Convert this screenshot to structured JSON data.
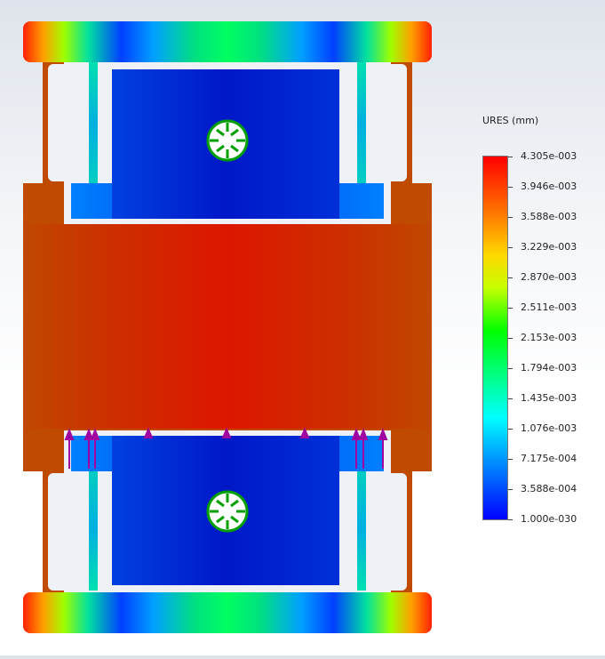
{
  "legend": {
    "title": "URES (mm)",
    "labels": [
      "4.305e-003",
      "3.946e-003",
      "3.588e-003",
      "3.229e-003",
      "2.870e-003",
      "2.511e-003",
      "2.153e-003",
      "1.794e-003",
      "1.435e-003",
      "1.076e-003",
      "7.175e-004",
      "3.588e-004",
      "1.000e-030"
    ]
  },
  "colors": {
    "max": "#ff0000",
    "high": "#c83a00",
    "mid_high": "#ffd800",
    "mid": "#00ff00",
    "mid_low": "#00ffff",
    "low": "#0000ff",
    "fixture_arrows": "#00a000",
    "load_arrows": "#a000a0"
  },
  "icons": {
    "fixture": "green-fixture-arrows-icon",
    "load": "purple-force-arrow-icon"
  }
}
